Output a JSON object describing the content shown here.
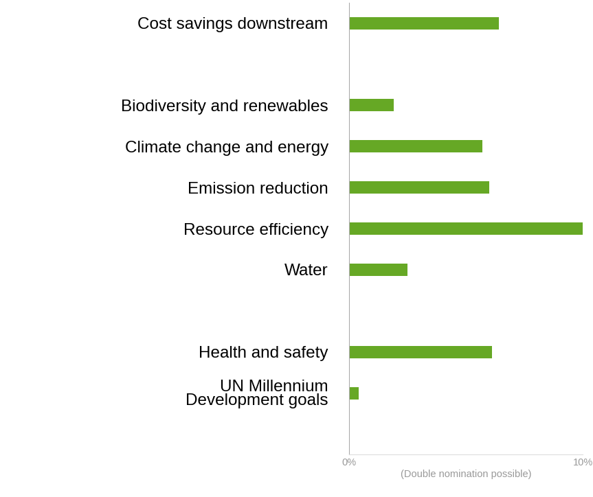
{
  "chart_data": {
    "type": "bar",
    "orientation": "horizontal",
    "categories": [
      "Cost savings downstream",
      null,
      "Biodiversity and renewables",
      "Climate change and energy",
      "Emission reduction",
      "Resource efficiency",
      "Water",
      null,
      "Health and safety",
      "UN Millennium Development goals"
    ],
    "values": [
      6.4,
      null,
      1.9,
      5.7,
      6.0,
      10.0,
      2.5,
      null,
      6.1,
      0.4
    ],
    "color": "#66a825",
    "xlim": [
      0,
      10
    ],
    "xticks": [
      {
        "value": 0,
        "label": "0%"
      },
      {
        "value": 10,
        "label": "10%"
      }
    ],
    "xlabel": "(Double nomination possible)",
    "grid": false
  }
}
